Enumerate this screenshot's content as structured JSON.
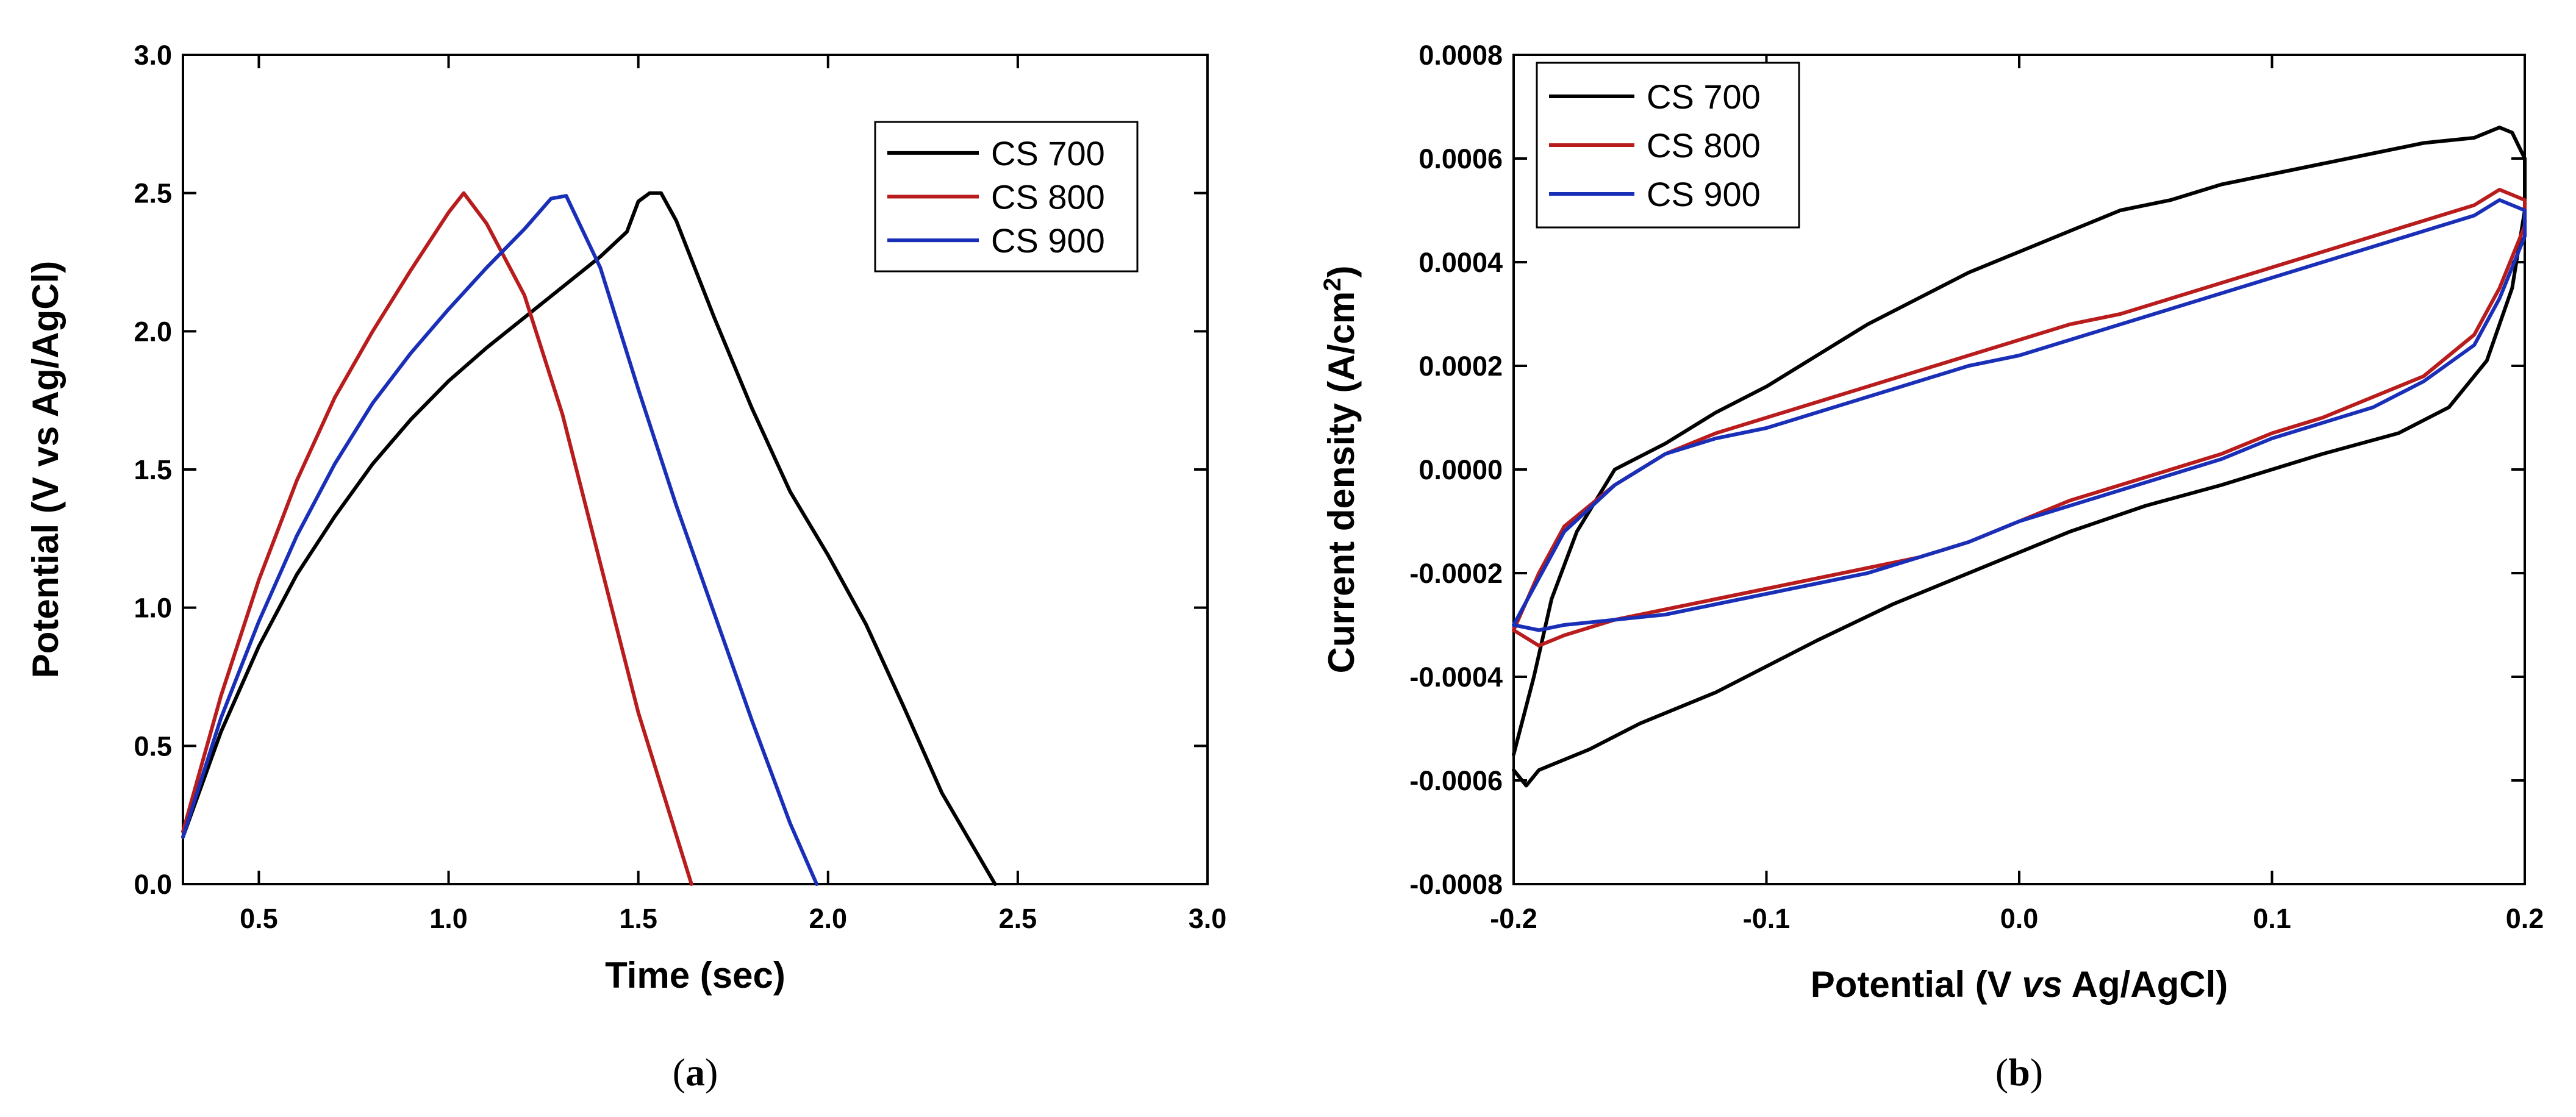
{
  "colors": {
    "CS 700": "#000000",
    "CS 800": "#b81c1c",
    "CS 900": "#1a2fb8"
  },
  "chart_data": [
    {
      "panel": "(a)",
      "panel_label_parts": [
        "(",
        "a",
        ")"
      ],
      "type": "line",
      "title": "",
      "xlabel": "Time (sec)",
      "ylabel": "Potential (V vs Ag/AgCl)",
      "xlim": [
        0.3,
        3.0
      ],
      "ylim": [
        0.0,
        3.0
      ],
      "xticks": [
        "0.5",
        "1.0",
        "1.5",
        "2.0",
        "2.5",
        "3.0"
      ],
      "yticks": [
        "0.0",
        "0.5",
        "1.0",
        "1.5",
        "2.0",
        "2.5",
        "3.0"
      ],
      "legend": [
        "CS 700",
        "CS 800",
        "CS 900"
      ],
      "legend_position": "top-right",
      "series": [
        {
          "name": "CS 700",
          "x": [
            0.3,
            0.4,
            0.5,
            0.6,
            0.7,
            0.8,
            0.9,
            1.0,
            1.1,
            1.2,
            1.3,
            1.4,
            1.47,
            1.5,
            1.53,
            1.56,
            1.6,
            1.7,
            1.8,
            1.9,
            2.0,
            2.1,
            2.2,
            2.3,
            2.44
          ],
          "y": [
            0.17,
            0.55,
            0.86,
            1.12,
            1.33,
            1.52,
            1.68,
            1.82,
            1.94,
            2.05,
            2.16,
            2.27,
            2.36,
            2.47,
            2.5,
            2.5,
            2.4,
            2.05,
            1.72,
            1.42,
            1.19,
            0.94,
            0.64,
            0.33,
            0.0
          ]
        },
        {
          "name": "CS 800",
          "x": [
            0.3,
            0.4,
            0.5,
            0.6,
            0.7,
            0.8,
            0.9,
            1.0,
            1.04,
            1.1,
            1.2,
            1.3,
            1.4,
            1.5,
            1.64
          ],
          "y": [
            0.19,
            0.68,
            1.1,
            1.46,
            1.76,
            2.0,
            2.22,
            2.43,
            2.5,
            2.39,
            2.13,
            1.7,
            1.16,
            0.62,
            0.0
          ]
        },
        {
          "name": "CS 900",
          "x": [
            0.3,
            0.4,
            0.5,
            0.6,
            0.7,
            0.8,
            0.9,
            1.0,
            1.1,
            1.2,
            1.27,
            1.31,
            1.4,
            1.5,
            1.6,
            1.7,
            1.8,
            1.9,
            1.97
          ],
          "y": [
            0.17,
            0.6,
            0.95,
            1.26,
            1.52,
            1.74,
            1.92,
            2.08,
            2.23,
            2.37,
            2.48,
            2.49,
            2.23,
            1.79,
            1.37,
            0.98,
            0.59,
            0.22,
            0.0
          ]
        }
      ]
    },
    {
      "panel": "(b)",
      "panel_label_parts": [
        "(",
        "b",
        ")"
      ],
      "type": "line",
      "title": "",
      "xlabel": "Potential (V vs Ag/AgCl)",
      "xlabel_parts": [
        "Potential (V ",
        "vs",
        " Ag/AgCl)"
      ],
      "ylabel": "Current density (A/cm2)",
      "ylabel_parts": [
        "Current density (A/cm",
        "2",
        ")"
      ],
      "xlim": [
        -0.2,
        0.2
      ],
      "ylim": [
        -0.0008,
        0.0008
      ],
      "xticks": [
        "-0.2",
        "-0.1",
        "0.0",
        "0.1",
        "0.2"
      ],
      "yticks": [
        "-0.0008",
        "-0.0006",
        "-0.0004",
        "-0.0002",
        "0.0000",
        "0.0002",
        "0.0004",
        "0.0006",
        "0.0008"
      ],
      "legend": [
        "CS 700",
        "CS 800",
        "CS 900"
      ],
      "legend_position": "top-left",
      "series": [
        {
          "name": "CS 700",
          "x": [
            -0.2,
            -0.192,
            -0.185,
            -0.175,
            -0.16,
            -0.14,
            -0.12,
            -0.1,
            -0.08,
            -0.06,
            -0.04,
            -0.02,
            0.0,
            0.02,
            0.04,
            0.06,
            0.08,
            0.1,
            0.12,
            0.14,
            0.16,
            0.18,
            0.19,
            0.195,
            0.2,
            0.2,
            0.195,
            0.185,
            0.17,
            0.15,
            0.12,
            0.1,
            0.08,
            0.05,
            0.02,
            0.0,
            -0.02,
            -0.05,
            -0.08,
            -0.1,
            -0.12,
            -0.15,
            -0.17,
            -0.19,
            -0.195,
            -0.2
          ],
          "y": [
            -0.00055,
            -0.0004,
            -0.00025,
            -0.00012,
            0.0,
            5e-05,
            0.00011,
            0.00016,
            0.00022,
            0.00028,
            0.00033,
            0.00038,
            0.00042,
            0.00046,
            0.0005,
            0.00052,
            0.00055,
            0.00057,
            0.00059,
            0.00061,
            0.00063,
            0.00064,
            0.00066,
            0.00065,
            0.0006,
            0.0005,
            0.00035,
            0.00021,
            0.00012,
            7e-05,
            3e-05,
            0.0,
            -3e-05,
            -7e-05,
            -0.00012,
            -0.00016,
            -0.0002,
            -0.00026,
            -0.00033,
            -0.00038,
            -0.00043,
            -0.00049,
            -0.00054,
            -0.00058,
            -0.00061,
            -0.00058
          ]
        },
        {
          "name": "CS 800",
          "x": [
            -0.2,
            -0.19,
            -0.18,
            -0.16,
            -0.14,
            -0.12,
            -0.1,
            -0.08,
            -0.06,
            -0.04,
            -0.02,
            0.0,
            0.02,
            0.04,
            0.06,
            0.08,
            0.1,
            0.12,
            0.14,
            0.16,
            0.18,
            0.19,
            0.2,
            0.2,
            0.19,
            0.18,
            0.16,
            0.14,
            0.12,
            0.1,
            0.08,
            0.06,
            0.04,
            0.02,
            0.0,
            -0.02,
            -0.04,
            -0.06,
            -0.08,
            -0.1,
            -0.12,
            -0.14,
            -0.16,
            -0.18,
            -0.19,
            -0.2
          ],
          "y": [
            -0.00031,
            -0.0002,
            -0.00011,
            -3e-05,
            3e-05,
            7e-05,
            0.0001,
            0.00013,
            0.00016,
            0.00019,
            0.00022,
            0.00025,
            0.00028,
            0.0003,
            0.00033,
            0.00036,
            0.00039,
            0.00042,
            0.00045,
            0.00048,
            0.00051,
            0.00054,
            0.00052,
            0.00047,
            0.00035,
            0.00026,
            0.00018,
            0.00014,
            0.0001,
            7e-05,
            3e-05,
            0.0,
            -3e-05,
            -6e-05,
            -0.0001,
            -0.00014,
            -0.00017,
            -0.00019,
            -0.00021,
            -0.00023,
            -0.00025,
            -0.00027,
            -0.00029,
            -0.00032,
            -0.00034,
            -0.00031
          ]
        },
        {
          "name": "CS 900",
          "x": [
            -0.2,
            -0.19,
            -0.18,
            -0.16,
            -0.14,
            -0.12,
            -0.1,
            -0.08,
            -0.06,
            -0.04,
            -0.02,
            0.0,
            0.02,
            0.04,
            0.06,
            0.08,
            0.1,
            0.12,
            0.14,
            0.16,
            0.18,
            0.19,
            0.2,
            0.2,
            0.19,
            0.18,
            0.16,
            0.14,
            0.12,
            0.1,
            0.08,
            0.06,
            0.04,
            0.02,
            0.0,
            -0.02,
            -0.04,
            -0.06,
            -0.08,
            -0.1,
            -0.12,
            -0.14,
            -0.16,
            -0.18,
            -0.19,
            -0.2
          ],
          "y": [
            -0.0003,
            -0.00021,
            -0.00012,
            -3e-05,
            3e-05,
            6e-05,
            8e-05,
            0.00011,
            0.00014,
            0.00017,
            0.0002,
            0.00022,
            0.00025,
            0.00028,
            0.00031,
            0.00034,
            0.00037,
            0.0004,
            0.00043,
            0.00046,
            0.00049,
            0.00052,
            0.0005,
            0.00045,
            0.00033,
            0.00024,
            0.00017,
            0.00012,
            9e-05,
            6e-05,
            2e-05,
            -1e-05,
            -4e-05,
            -7e-05,
            -0.0001,
            -0.00014,
            -0.00017,
            -0.0002,
            -0.00022,
            -0.00024,
            -0.00026,
            -0.00028,
            -0.00029,
            -0.0003,
            -0.00031,
            -0.0003
          ]
        }
      ]
    }
  ]
}
